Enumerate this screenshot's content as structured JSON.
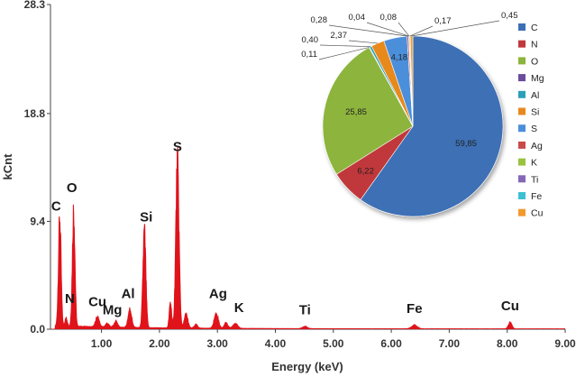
{
  "chart_data": [
    {
      "type": "area",
      "xlabel": "Energy (keV)",
      "ylabel": "kCnt",
      "xlim": [
        0.0,
        9.0
      ],
      "ylim": [
        0.0,
        28.3
      ],
      "x_ticks": [
        "1.00",
        "2.00",
        "3.00",
        "4.00",
        "5.00",
        "6.00",
        "7.00",
        "8.00",
        "9.00"
      ],
      "y_ticks": [
        "0.0",
        "9.4",
        "18.8",
        "28.3"
      ],
      "series_color": "#e0121a",
      "peaks": [
        {
          "label": "C",
          "x": 0.28,
          "y": 9.4
        },
        {
          "label": "N",
          "x": 0.39,
          "y": 0.7
        },
        {
          "label": "O",
          "x": 0.52,
          "y": 10.2
        },
        {
          "label": "Cu",
          "x": 0.93,
          "y": 0.9
        },
        {
          "label": "Mg",
          "x": 1.25,
          "y": 0.5
        },
        {
          "label": "Al",
          "x": 1.49,
          "y": 1.6
        },
        {
          "label": "Si",
          "x": 1.74,
          "y": 8.3
        },
        {
          "label": "S",
          "x": 2.31,
          "y": 14.1
        },
        {
          "label": "Ag",
          "x": 2.98,
          "y": 1.3
        },
        {
          "label": "K",
          "x": 3.31,
          "y": 0.4
        },
        {
          "label": "Ti",
          "x": 4.51,
          "y": 0.2
        },
        {
          "label": "Fe",
          "x": 6.4,
          "y": 0.3
        },
        {
          "label": "Cu",
          "x": 8.05,
          "y": 0.55
        }
      ]
    },
    {
      "type": "pie",
      "slices": [
        {
          "name": "C",
          "value": 59.85,
          "label": "59,85",
          "color": "#3d6fb5"
        },
        {
          "name": "N",
          "value": 6.22,
          "label": "6,22",
          "color": "#c0393b"
        },
        {
          "name": "O",
          "value": 25.85,
          "label": "25,85",
          "color": "#8db43c"
        },
        {
          "name": "Mg",
          "value": 0.11,
          "label": "0,11",
          "color": "#6b4b9b"
        },
        {
          "name": "Al",
          "value": 0.4,
          "label": "0,40",
          "color": "#2aa0b8"
        },
        {
          "name": "Si",
          "value": 2.37,
          "label": "2,37",
          "color": "#e8891f"
        },
        {
          "name": "S",
          "value": 4.18,
          "label": "4,18",
          "color": "#4b8fdb"
        },
        {
          "name": "Ag",
          "value": 0.28,
          "label": "0,28",
          "color": "#c94a4a"
        },
        {
          "name": "K",
          "value": 0.04,
          "label": "0,04",
          "color": "#9ac140"
        },
        {
          "name": "Ti",
          "value": 0.08,
          "label": "0,08",
          "color": "#8566b8"
        },
        {
          "name": "Fe",
          "value": 0.17,
          "label": "0,17",
          "color": "#3cc0d4"
        },
        {
          "name": "Cu",
          "value": 0.45,
          "label": "0,45",
          "color": "#f29a2e"
        }
      ],
      "legend_position": "right"
    }
  ]
}
